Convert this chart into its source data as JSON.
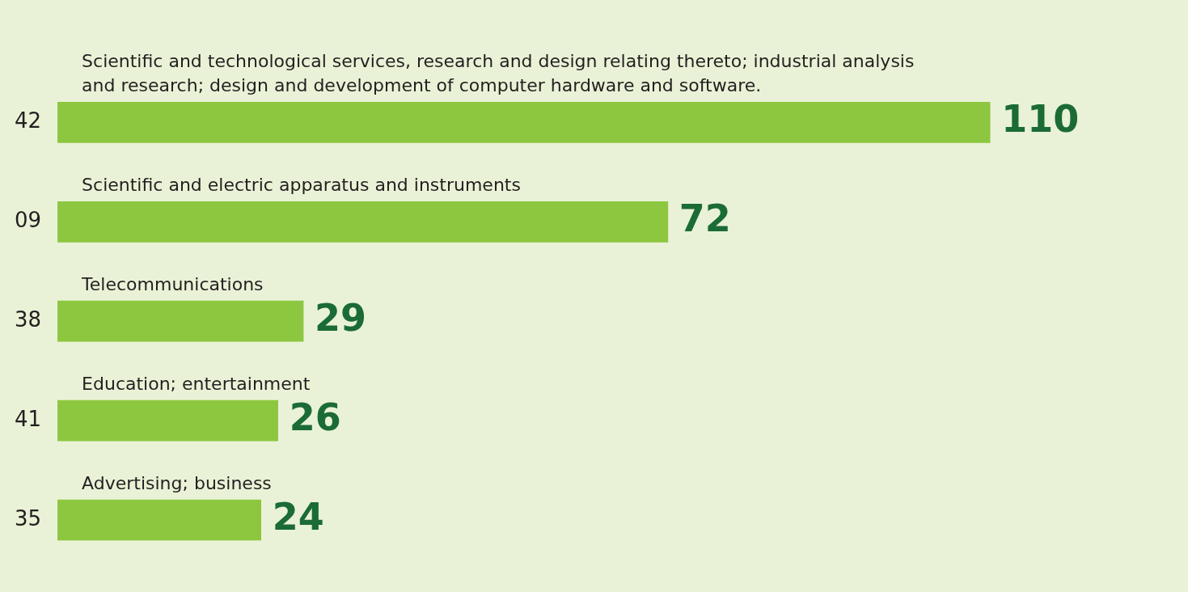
{
  "chart_data": {
    "type": "bar",
    "orientation": "horizontal",
    "categories": [
      "42",
      "09",
      "38",
      "41",
      "35"
    ],
    "values": [
      110,
      72,
      29,
      26,
      24
    ],
    "color": "#8dc63f",
    "data_labels": true,
    "grid": false,
    "legend": false,
    "tick_labels": "y",
    "annotations": [
      "Scientific and technological services, research and design relating thereto; industrial analysis and research; design and development of computer hardware and software.",
      "Scientific and electric apparatus and instruments",
      "Telecommunications",
      "Education; entertainment",
      "Advertising; business"
    ]
  }
}
